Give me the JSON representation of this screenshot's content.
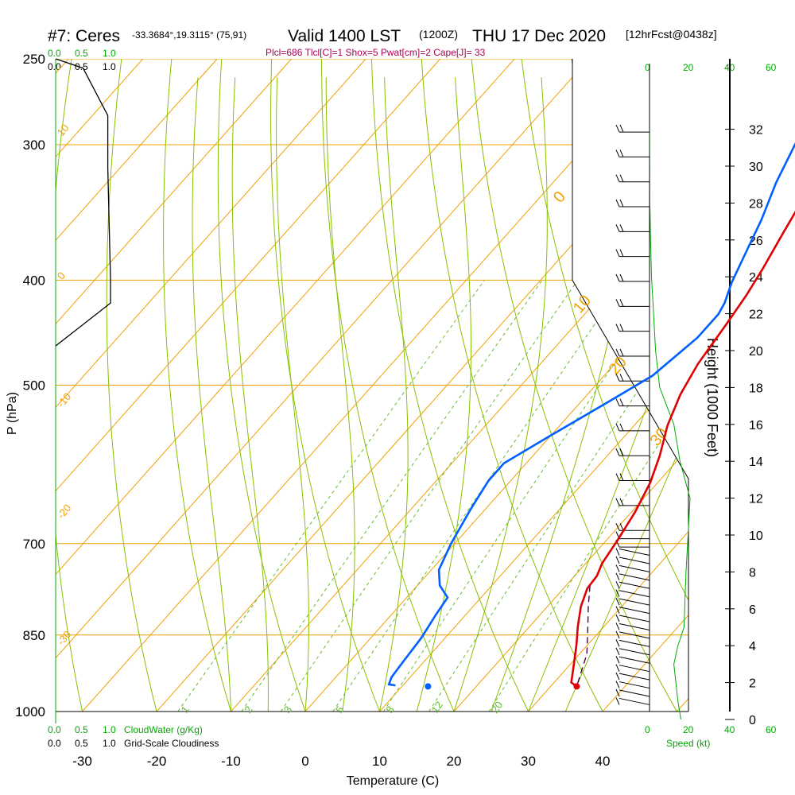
{
  "header": {
    "station": "#7: Ceres",
    "coords": "-33.3684°,19.3115° (75,91)",
    "valid": "Valid 1400 LST",
    "zulu": "(1200Z)",
    "date": "THU 17 Dec 2020",
    "fcst": "[12hrFcst@0438z]",
    "indices": "Plcl=686 Tlcl[C]=1 Shox=5 Pwat[cm]=2 Cape[J]= 33"
  },
  "colors": {
    "isotherm": "#f0a000",
    "dry_adiabat": "#88c000",
    "moist_adiabat": "#88c000",
    "mixing_ratio": "#66bb33",
    "temperature": "#e00000",
    "dewpoint": "#0060ff",
    "parcel": "#500050",
    "cloud": "#00aa00",
    "indices": "#aa0055"
  },
  "labels": {
    "cloudwater_axis": [
      "0.0",
      "0.5",
      "1.0"
    ],
    "cloudwater_title": "CloudWater (g/Kg)",
    "cloudiness_axis": [
      "0.0",
      "0.5",
      "1.0"
    ],
    "cloudiness_title": "Grid-Scale Cloudiness",
    "speed_ticks": [
      "0",
      "20",
      "40",
      "60"
    ],
    "speed_title": "Speed (kt)"
  },
  "chart_data": {
    "type": "line",
    "xlabel": "Temperature (C)",
    "ylabel": "P (hPa)",
    "y2label": "Height (1000 Feet)",
    "x_ticks": [
      -30,
      -20,
      -10,
      0,
      10,
      20,
      30,
      40
    ],
    "p_ticks": [
      250,
      300,
      400,
      500,
      700,
      850,
      1000
    ],
    "height_ticks": [
      0,
      2,
      4,
      6,
      8,
      10,
      12,
      14,
      16,
      18,
      20,
      22,
      24,
      26,
      28,
      30,
      32
    ],
    "xlim": [
      -34,
      46
    ],
    "plim": [
      250,
      1000
    ],
    "isotherm_labels": [
      {
        "value": "10",
        "t": -34,
        "p": 295
      },
      {
        "value": "0",
        "t": -34,
        "p": 400
      },
      {
        "value": "-10",
        "t": -34,
        "p": 525
      },
      {
        "value": "-20",
        "t": -34,
        "p": 665
      },
      {
        "value": "-30",
        "t": -34,
        "p": 870
      },
      {
        "value": "0",
        "t": 34,
        "p": 340
      },
      {
        "value": "10",
        "t": 38,
        "p": 430
      },
      {
        "value": "20",
        "t": 42,
        "p": 490
      },
      {
        "value": "30",
        "t": 48,
        "p": 570
      }
    ],
    "mixing_ratio_labels": [
      "1",
      "2",
      "3",
      "5",
      "8",
      "12",
      "20"
    ],
    "series": [
      {
        "name": "Temperature",
        "points": [
          [
            -1,
            250
          ],
          [
            0,
            265
          ],
          [
            2,
            290
          ],
          [
            4,
            312
          ],
          [
            5.5,
            335
          ],
          [
            7,
            362
          ],
          [
            8.5,
            390
          ],
          [
            9.5,
            413
          ],
          [
            10.3,
            440
          ],
          [
            11.2,
            478
          ],
          [
            12.5,
            510
          ],
          [
            14.5,
            545
          ],
          [
            17,
            580
          ],
          [
            19,
            615
          ],
          [
            20.5,
            655
          ],
          [
            21.5,
            695
          ],
          [
            22.2,
            730
          ],
          [
            23,
            750
          ],
          [
            23.2,
            770
          ],
          [
            24.5,
            800
          ],
          [
            26.5,
            835
          ],
          [
            28.5,
            868
          ],
          [
            30.5,
            905
          ],
          [
            32.3,
            940
          ],
          [
            33.5,
            948
          ]
        ]
      },
      {
        "name": "Dewpoint",
        "points": [
          [
            -5.5,
            250
          ],
          [
            -4,
            272
          ],
          [
            -2,
            300
          ],
          [
            0,
            325
          ],
          [
            2.5,
            352
          ],
          [
            4.5,
            380
          ],
          [
            6,
            402
          ],
          [
            7.5,
            420
          ],
          [
            8,
            430
          ],
          [
            8,
            452
          ],
          [
            6.5,
            490
          ],
          [
            3.5,
            520
          ],
          [
            0,
            556
          ],
          [
            -3,
            590
          ],
          [
            -3,
            612
          ],
          [
            -2,
            650
          ],
          [
            -0.5,
            700
          ],
          [
            1,
            740
          ],
          [
            3,
            765
          ],
          [
            5.5,
            785
          ],
          [
            6,
            815
          ],
          [
            6.8,
            855
          ],
          [
            7.2,
            900
          ],
          [
            7.5,
            930
          ],
          [
            8,
            944
          ],
          [
            9,
            946
          ]
        ]
      },
      {
        "name": "Parcel",
        "points": [
          [
            23.2,
            765
          ],
          [
            25.5,
            800
          ],
          [
            28.5,
            845
          ],
          [
            31,
            885
          ],
          [
            33.5,
            948
          ]
        ]
      }
    ],
    "surface_points": [
      {
        "name": "Dewpoint",
        "t": 13.5,
        "p": 948
      },
      {
        "name": "Temperature",
        "t": 33.5,
        "p": 948
      }
    ],
    "wind_speed_profile": [
      [
        15.5,
        0
      ],
      [
        14,
        1
      ],
      [
        12,
        3
      ],
      [
        14,
        4
      ],
      [
        17,
        5
      ],
      [
        18,
        8
      ],
      [
        19,
        10
      ],
      [
        20,
        12
      ],
      [
        15,
        14
      ],
      [
        12,
        16
      ],
      [
        5,
        18
      ],
      [
        3,
        20
      ],
      [
        2,
        22
      ],
      [
        1,
        24
      ],
      [
        0.5,
        26
      ],
      [
        0.2,
        28
      ],
      [
        0.1,
        32
      ]
    ],
    "cloudiness_profile": [
      [
        0.0,
        250
      ],
      [
        0.5,
        255
      ],
      [
        0.95,
        282
      ],
      [
        0.95,
        315
      ],
      [
        1.0,
        400
      ],
      [
        1.0,
        420
      ],
      [
        0.0,
        460
      ]
    ]
  }
}
